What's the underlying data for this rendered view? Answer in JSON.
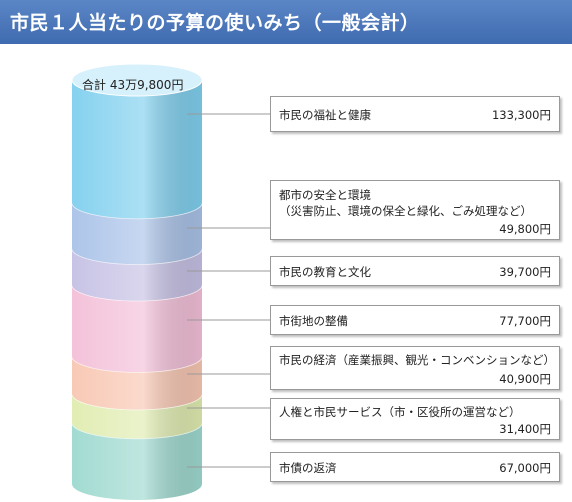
{
  "header": {
    "title": "市民１人当たりの予算の使いみち（一般会計）"
  },
  "total": {
    "label": "合計 43万9,800円"
  },
  "items": [
    {
      "label": "市民の福祉と健康",
      "sub": "",
      "value": "133,300円",
      "amount": 133300,
      "color": "#7fcfee"
    },
    {
      "label": "都市の安全と環境",
      "sub": "（災害防止、環境の保全と緑化、ごみ処理など）",
      "value": "49,800円",
      "amount": 49800,
      "color": "#a9c2e8"
    },
    {
      "label": "市民の教育と文化",
      "sub": "",
      "value": "39,700円",
      "amount": 39700,
      "color": "#c5c0e4"
    },
    {
      "label": "市街地の整備",
      "sub": "",
      "value": "77,700円",
      "amount": 77700,
      "color": "#f3bfd8"
    },
    {
      "label": "市民の経済（産業振興、観光・コンベンションなど）",
      "sub": "",
      "value": "40,900円",
      "amount": 40900,
      "color": "#f8c6b2"
    },
    {
      "label": "人権と市民サービス（市・区役所の運営など）",
      "sub": "",
      "value": "31,400円",
      "amount": 31400,
      "color": "#e0ecb0"
    },
    {
      "label": "市債の返済",
      "sub": "",
      "value": "67,000円",
      "amount": 67000,
      "color": "#9dd9cf"
    }
  ]
}
